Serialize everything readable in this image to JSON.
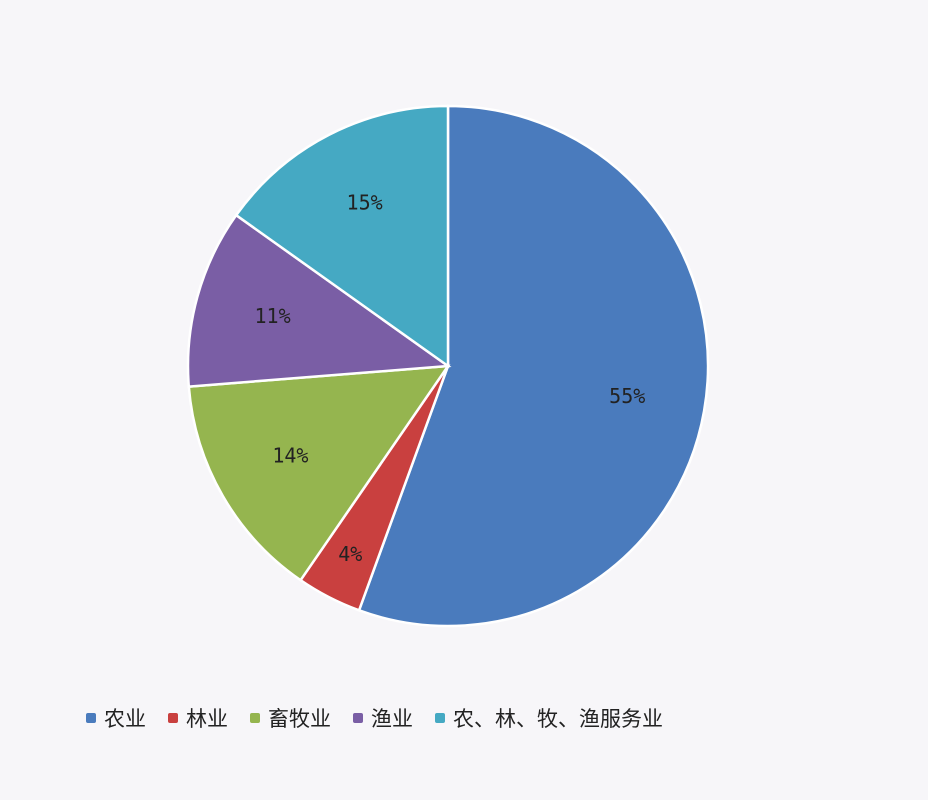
{
  "chart_data": {
    "type": "pie",
    "start_angle_deg": 0,
    "direction": "clockwise",
    "slices": [
      {
        "label": "农业",
        "value": 55,
        "display": "55%",
        "color": "#4a7bbd"
      },
      {
        "label": "林业",
        "value": 4,
        "display": "4%",
        "color": "#c9403f"
      },
      {
        "label": "畜牧业",
        "value": 14,
        "display": "14%",
        "color": "#95b54f"
      },
      {
        "label": "渔业",
        "value": 11,
        "display": "11%",
        "color": "#7a5ea5"
      },
      {
        "label": "农、林、牧、渔服务业",
        "value": 15,
        "display": "15%",
        "color": "#45a9c3"
      }
    ],
    "legend_position": "bottom"
  }
}
